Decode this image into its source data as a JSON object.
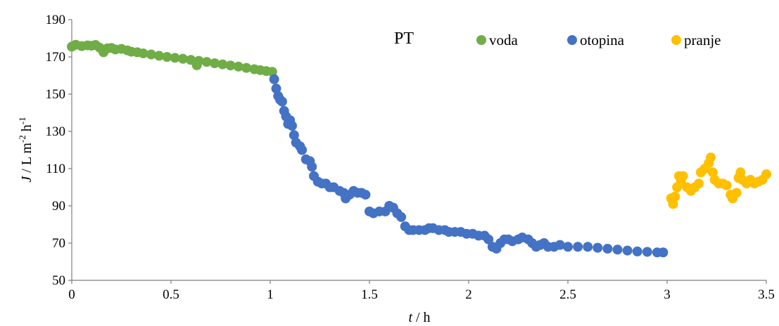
{
  "chart_data": {
    "type": "scatter",
    "title": "PT",
    "xlabel": {
      "italic": "t",
      "rest": " / h"
    },
    "ylabel": {
      "italic": "J",
      "rest": " / L m",
      "sup1": "-2",
      "mid": " h",
      "sup2": "-1"
    },
    "xlim": [
      0,
      3.5
    ],
    "ylim": [
      50,
      190
    ],
    "xticks": [
      0,
      0.5,
      1,
      1.5,
      2,
      2.5,
      3,
      3.5
    ],
    "xtick_labels": [
      "0",
      "0.5",
      "1",
      "1.5",
      "2",
      "2.5",
      "3",
      "3.5"
    ],
    "yticks": [
      50,
      70,
      90,
      110,
      130,
      150,
      170,
      190
    ],
    "ytick_labels": [
      "50",
      "70",
      "90",
      "110",
      "130",
      "150",
      "170",
      "190"
    ],
    "grid": false,
    "legend_position": "top-right",
    "series": [
      {
        "name": "voda",
        "color": "#70AD47",
        "points": [
          [
            0.0,
            175.5
          ],
          [
            0.02,
            176.5
          ],
          [
            0.05,
            175.8
          ],
          [
            0.08,
            176.2
          ],
          [
            0.1,
            176.0
          ],
          [
            0.12,
            176.4
          ],
          [
            0.14,
            175.0
          ],
          [
            0.16,
            172.5
          ],
          [
            0.18,
            174.6
          ],
          [
            0.2,
            174.8
          ],
          [
            0.22,
            174.0
          ],
          [
            0.25,
            174.3
          ],
          [
            0.28,
            173.5
          ],
          [
            0.3,
            172.8
          ],
          [
            0.33,
            172.5
          ],
          [
            0.36,
            171.9
          ],
          [
            0.4,
            171.3
          ],
          [
            0.44,
            170.6
          ],
          [
            0.48,
            170.0
          ],
          [
            0.52,
            169.5
          ],
          [
            0.56,
            169.0
          ],
          [
            0.6,
            168.4
          ],
          [
            0.63,
            165.5
          ],
          [
            0.64,
            167.9
          ],
          [
            0.68,
            167.3
          ],
          [
            0.72,
            166.6
          ],
          [
            0.76,
            166.0
          ],
          [
            0.8,
            165.4
          ],
          [
            0.84,
            164.8
          ],
          [
            0.88,
            164.1
          ],
          [
            0.92,
            163.4
          ],
          [
            0.95,
            162.9
          ],
          [
            0.98,
            162.4
          ],
          [
            1.01,
            162.0
          ]
        ]
      },
      {
        "name": "otopina",
        "color": "#4472C4",
        "points": [
          [
            1.02,
            158.0
          ],
          [
            1.03,
            153.0
          ],
          [
            1.04,
            149.0
          ],
          [
            1.05,
            147.0
          ],
          [
            1.06,
            146.0
          ],
          [
            1.07,
            141.0
          ],
          [
            1.08,
            138.0
          ],
          [
            1.09,
            134.0
          ],
          [
            1.1,
            136.0
          ],
          [
            1.11,
            133.0
          ],
          [
            1.12,
            128.0
          ],
          [
            1.13,
            124.0
          ],
          [
            1.15,
            122.0
          ],
          [
            1.16,
            120.0
          ],
          [
            1.18,
            115.0
          ],
          [
            1.2,
            114.0
          ],
          [
            1.21,
            111.0
          ],
          [
            1.22,
            106.0
          ],
          [
            1.24,
            103.0
          ],
          [
            1.26,
            102.0
          ],
          [
            1.28,
            102.0
          ],
          [
            1.3,
            100.0
          ],
          [
            1.32,
            100.0
          ],
          [
            1.35,
            98.0
          ],
          [
            1.37,
            97.0
          ],
          [
            1.38,
            94.0
          ],
          [
            1.4,
            96.0
          ],
          [
            1.42,
            98.0
          ],
          [
            1.44,
            97.0
          ],
          [
            1.46,
            97.0
          ],
          [
            1.48,
            96.0
          ],
          [
            1.5,
            87.0
          ],
          [
            1.52,
            86.0
          ],
          [
            1.55,
            87.0
          ],
          [
            1.58,
            87.0
          ],
          [
            1.6,
            90.0
          ],
          [
            1.62,
            89.0
          ],
          [
            1.64,
            86.0
          ],
          [
            1.66,
            84.0
          ],
          [
            1.68,
            79.0
          ],
          [
            1.7,
            77.0
          ],
          [
            1.72,
            77.0
          ],
          [
            1.75,
            77.0
          ],
          [
            1.78,
            77.0
          ],
          [
            1.8,
            78.0
          ],
          [
            1.82,
            78.0
          ],
          [
            1.85,
            77.0
          ],
          [
            1.88,
            77.0
          ],
          [
            1.9,
            76.0
          ],
          [
            1.93,
            76.0
          ],
          [
            1.96,
            76.0
          ],
          [
            1.99,
            75.0
          ],
          [
            2.02,
            75.0
          ],
          [
            2.05,
            74.0
          ],
          [
            2.08,
            74.0
          ],
          [
            2.1,
            72.0
          ],
          [
            2.12,
            68.0
          ],
          [
            2.14,
            67.0
          ],
          [
            2.16,
            70.0
          ],
          [
            2.18,
            72.0
          ],
          [
            2.2,
            72.0
          ],
          [
            2.22,
            71.0
          ],
          [
            2.25,
            72.0
          ],
          [
            2.27,
            73.0
          ],
          [
            2.3,
            72.0
          ],
          [
            2.32,
            70.0
          ],
          [
            2.34,
            68.0
          ],
          [
            2.36,
            69.0
          ],
          [
            2.38,
            70.0
          ],
          [
            2.4,
            68.0
          ],
          [
            2.43,
            68.0
          ],
          [
            2.46,
            69.0
          ],
          [
            2.5,
            68.0
          ],
          [
            2.55,
            68.0
          ],
          [
            2.6,
            68.0
          ],
          [
            2.65,
            67.5
          ],
          [
            2.7,
            67.0
          ],
          [
            2.75,
            66.5
          ],
          [
            2.8,
            66.0
          ],
          [
            2.85,
            65.5
          ],
          [
            2.9,
            65.3
          ],
          [
            2.95,
            65.0
          ],
          [
            2.98,
            65.0
          ]
        ]
      },
      {
        "name": "pranje",
        "color": "#FFC000",
        "points": [
          [
            3.02,
            94.0
          ],
          [
            3.03,
            91.0
          ],
          [
            3.04,
            95.0
          ],
          [
            3.05,
            100.0
          ],
          [
            3.06,
            106.0
          ],
          [
            3.07,
            103.0
          ],
          [
            3.08,
            106.0
          ],
          [
            3.1,
            100.0
          ],
          [
            3.12,
            98.0
          ],
          [
            3.14,
            100.0
          ],
          [
            3.16,
            102.0
          ],
          [
            3.17,
            108.0
          ],
          [
            3.19,
            110.0
          ],
          [
            3.21,
            113.0
          ],
          [
            3.22,
            116.0
          ],
          [
            3.23,
            108.0
          ],
          [
            3.24,
            104.0
          ],
          [
            3.26,
            102.0
          ],
          [
            3.28,
            102.0
          ],
          [
            3.3,
            101.0
          ],
          [
            3.32,
            96.0
          ],
          [
            3.33,
            94.0
          ],
          [
            3.35,
            97.0
          ],
          [
            3.36,
            105.0
          ],
          [
            3.37,
            108.0
          ],
          [
            3.38,
            104.0
          ],
          [
            3.4,
            102.0
          ],
          [
            3.42,
            104.0
          ],
          [
            3.44,
            102.0
          ],
          [
            3.46,
            103.0
          ],
          [
            3.48,
            104.0
          ],
          [
            3.5,
            107.0
          ]
        ]
      }
    ]
  }
}
